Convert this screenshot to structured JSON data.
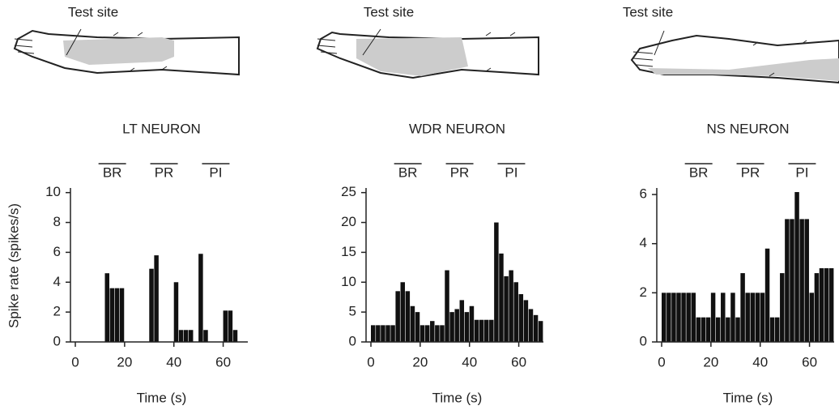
{
  "chart_data": [
    {
      "type": "histogram",
      "title": "LT NEURON",
      "site_label": "Test site",
      "xlabel": "Time (s)",
      "ylabel": "Spike rate (spikes/s)",
      "annotations": [
        "BR",
        "PR",
        "PI"
      ],
      "bins": [
        0,
        2,
        4,
        6,
        8,
        10,
        12,
        14,
        16,
        18,
        20,
        22,
        24,
        26,
        28,
        30,
        32,
        34,
        36,
        38,
        40,
        42,
        44,
        46,
        48,
        50,
        52,
        54,
        56,
        58,
        60,
        62,
        64,
        66,
        68,
        70
      ],
      "values": [
        0,
        0,
        0,
        0,
        0,
        0,
        4.6,
        3.6,
        3.6,
        3.6,
        0,
        0,
        0,
        0,
        0,
        4.9,
        5.8,
        0,
        0,
        0,
        4,
        0.8,
        0.8,
        0.8,
        0,
        5.9,
        0.8,
        0,
        0,
        0,
        2.1,
        2.1,
        0.8,
        0,
        0
      ],
      "color": "#111111",
      "xlim": [
        0,
        70
      ],
      "ylim": [
        0,
        10.2
      ],
      "xticks": [
        0,
        20,
        40,
        60
      ],
      "yticks": [
        0,
        2,
        4,
        6,
        8,
        10
      ]
    },
    {
      "type": "histogram",
      "title": "WDR NEURON",
      "site_label": "Test site",
      "xlabel": "Time (s)",
      "annotations": [
        "BR",
        "PR",
        "PI"
      ],
      "bins": [
        0,
        2,
        4,
        6,
        8,
        10,
        12,
        14,
        16,
        18,
        20,
        22,
        24,
        26,
        28,
        30,
        32,
        34,
        36,
        38,
        40,
        42,
        44,
        46,
        48,
        50,
        52,
        54,
        56,
        58,
        60,
        62,
        64,
        66,
        68,
        70
      ],
      "values": [
        2.8,
        2.8,
        2.8,
        2.8,
        2.8,
        8.5,
        10,
        8.5,
        6,
        5,
        2.8,
        2.8,
        3.5,
        2.8,
        2.8,
        12,
        5,
        5.5,
        7,
        5,
        6,
        3.7,
        3.7,
        3.7,
        3.7,
        20,
        14.8,
        11,
        12,
        10,
        8,
        7,
        5.5,
        4.5,
        3.5
      ],
      "color": "#111111",
      "xlim": [
        0,
        70
      ],
      "ylim": [
        0,
        25.5
      ],
      "xticks": [
        0,
        20,
        40,
        60
      ],
      "yticks": [
        0,
        5,
        10,
        15,
        20,
        25
      ]
    },
    {
      "type": "histogram",
      "title": "NS NEURON",
      "site_label": "Test site",
      "xlabel": "Time (s)",
      "annotations": [
        "BR",
        "PR",
        "PI"
      ],
      "bins": [
        0,
        2,
        4,
        6,
        8,
        10,
        12,
        14,
        16,
        18,
        20,
        22,
        24,
        26,
        28,
        30,
        32,
        34,
        36,
        38,
        40,
        42,
        44,
        46,
        48,
        50,
        52,
        54,
        56,
        58,
        60,
        62,
        64,
        66,
        68,
        70
      ],
      "values": [
        2,
        2,
        2,
        2,
        2,
        2,
        2,
        1,
        1,
        1,
        2,
        1,
        2,
        1,
        2,
        1,
        2.8,
        2,
        2,
        2,
        2,
        3.8,
        1,
        1,
        2.8,
        5,
        5,
        6.1,
        5,
        5,
        2,
        2.8,
        3,
        3,
        3
      ],
      "color": "#111111",
      "xlim": [
        0,
        70
      ],
      "ylim": [
        0,
        6.2
      ],
      "xticks": [
        0,
        20,
        40,
        60
      ],
      "yticks": [
        0,
        2,
        4,
        6
      ]
    }
  ]
}
